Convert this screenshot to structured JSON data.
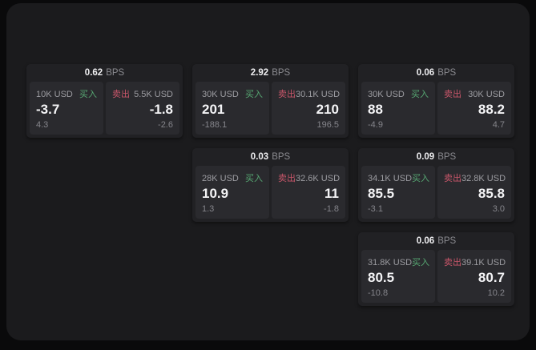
{
  "colors": {
    "buy_green": "#57a873",
    "sell_red": "#c9566a",
    "window_bg": "#1b1b1d",
    "card_bg": "#212124",
    "panel_bg": "#2a2a2e"
  },
  "cards": [
    {
      "spread": {
        "value": "0.62",
        "unit": "BPS"
      },
      "buy": {
        "amount": "10K USD",
        "label": "买入",
        "price": "-3.7",
        "change": "4.3"
      },
      "sell": {
        "label": "卖出",
        "amount": "5.5K USD",
        "price": "-1.8",
        "change": "-2.6"
      }
    },
    {
      "spread": {
        "value": "2.92",
        "unit": "BPS"
      },
      "buy": {
        "amount": "30K USD",
        "label": "买入",
        "price": "201",
        "change": "-188.1"
      },
      "sell": {
        "label": "卖出",
        "amount": "30.1K USD",
        "price": "210",
        "change": "196.5"
      }
    },
    {
      "spread": {
        "value": "0.06",
        "unit": "BPS"
      },
      "buy": {
        "amount": "30K USD",
        "label": "买入",
        "price": "88",
        "change": "-4.9"
      },
      "sell": {
        "label": "卖出",
        "amount": "30K USD",
        "price": "88.2",
        "change": "4.7"
      }
    },
    {
      "spread": {
        "value": "0.03",
        "unit": "BPS"
      },
      "buy": {
        "amount": "28K USD",
        "label": "买入",
        "price": "10.9",
        "change": "1.3"
      },
      "sell": {
        "label": "卖出",
        "amount": "32.6K USD",
        "price": "11",
        "change": "-1.8"
      }
    },
    {
      "spread": {
        "value": "0.09",
        "unit": "BPS"
      },
      "buy": {
        "amount": "34.1K USD",
        "label": "买入",
        "price": "85.5",
        "change": "-3.1"
      },
      "sell": {
        "label": "卖出",
        "amount": "32.8K USD",
        "price": "85.8",
        "change": "3.0"
      }
    },
    {
      "spread": {
        "value": "0.06",
        "unit": "BPS"
      },
      "buy": {
        "amount": "31.8K USD",
        "label": "买入",
        "price": "80.5",
        "change": "-10.8"
      },
      "sell": {
        "label": "卖出",
        "amount": "39.1K USD",
        "price": "80.7",
        "change": "10.2"
      }
    }
  ]
}
